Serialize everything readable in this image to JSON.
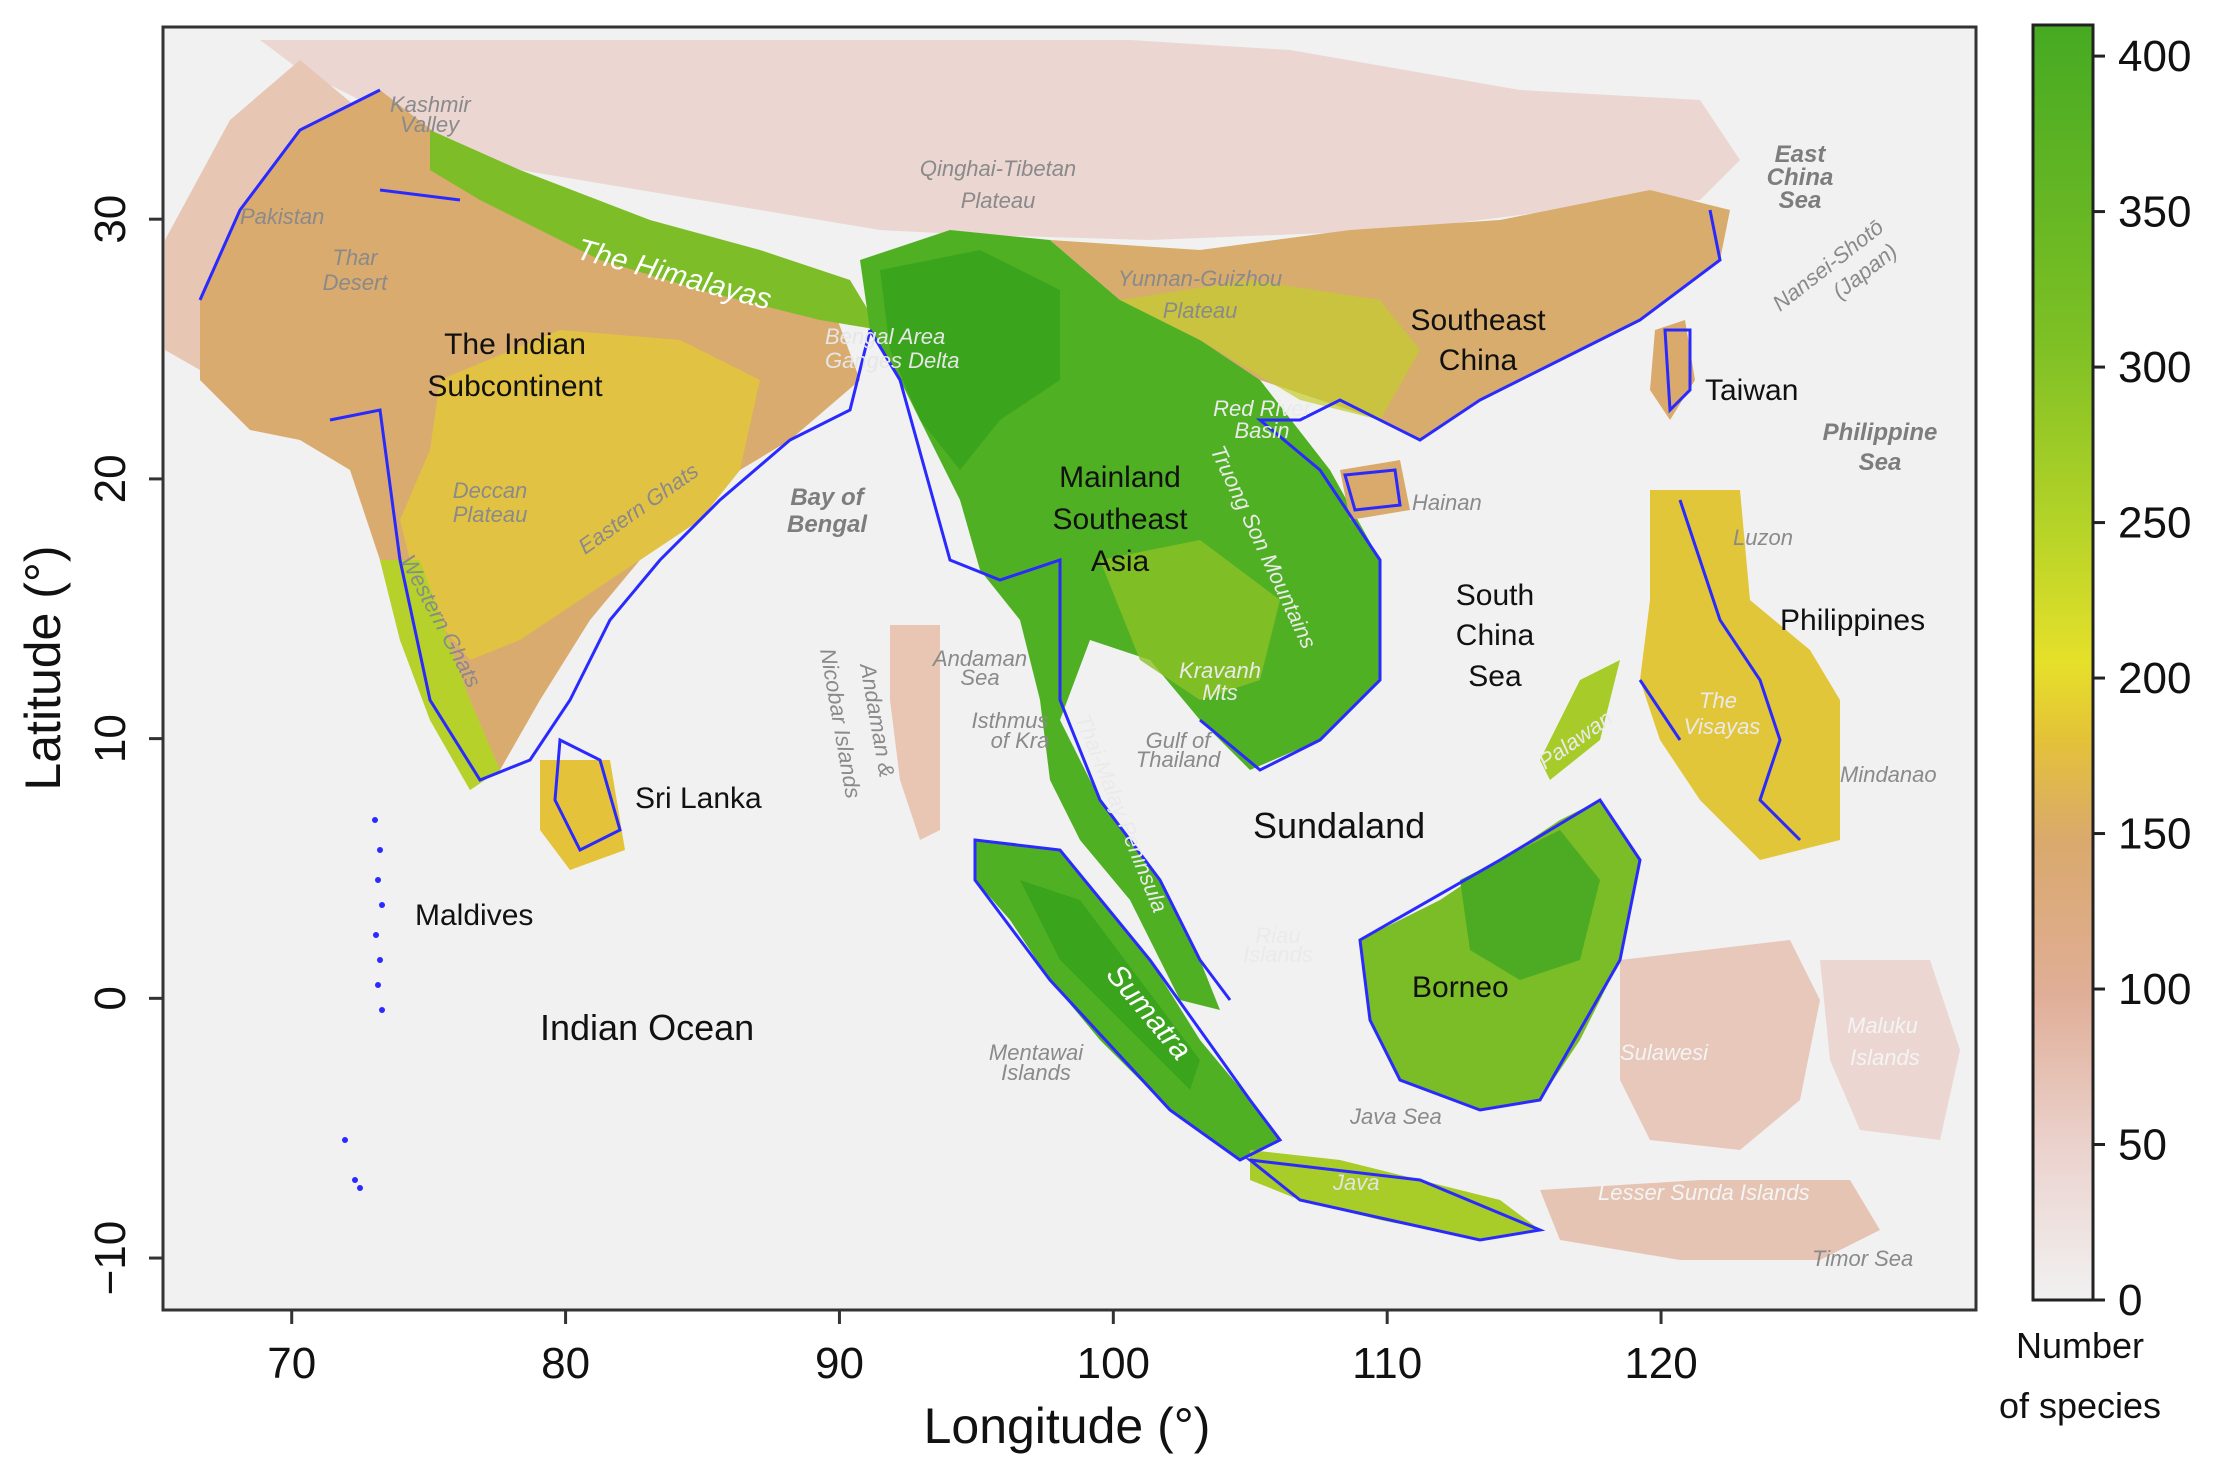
{
  "colors": {
    "background": "#f1f1f1",
    "land_low": "#ebd2cd",
    "land_mid": "#d9aa6c",
    "land_yellow": "#e6e02a",
    "land_green": "#50b024",
    "land_dark_green": "#3aa51c",
    "coastline": "#2a2aff",
    "border": "#b0b0b0"
  },
  "map": {
    "xaxis": {
      "title": "Longitude (°)",
      "ticks": [
        "70",
        "80",
        "90",
        "100",
        "110",
        "120"
      ],
      "tick_values": [
        70,
        80,
        90,
        100,
        110,
        120
      ],
      "range": [
        65.3,
        131.5
      ]
    },
    "yaxis": {
      "title": "Latitude (°)",
      "ticks": [
        "30",
        "20",
        "10",
        "0",
        "−10"
      ],
      "tick_values": [
        30,
        20,
        10,
        0,
        -10
      ],
      "range": [
        -12,
        37.4
      ]
    },
    "colorbar": {
      "title_line1": "Number",
      "title_line2": "of species",
      "ticks": [
        "400",
        "350",
        "300",
        "250",
        "200",
        "150",
        "100",
        "50",
        "0"
      ],
      "tick_values": [
        400,
        350,
        300,
        250,
        200,
        150,
        100,
        50,
        0
      ],
      "range": [
        0,
        410
      ],
      "stops": [
        "#f1f1f1",
        "#ebd2cd",
        "#e0ae97",
        "#d9a96d",
        "#e4c238",
        "#e6e02a",
        "#b8d428",
        "#7ec025",
        "#46aa22"
      ]
    },
    "region_labels": [
      {
        "line1": "The Indian",
        "line2": "Subcontinent"
      },
      {
        "line1": "Mainland",
        "line2": "Southeast",
        "line3": "Asia"
      },
      {
        "line1": "Southeast",
        "line2": "China"
      },
      {
        "text": "Taiwan"
      },
      {
        "text": "Hainan"
      },
      {
        "line1": "South",
        "line2": "China",
        "line3": "Sea"
      },
      {
        "text": "Philippines"
      },
      {
        "text": "Sri Lanka"
      },
      {
        "text": "Maldives"
      },
      {
        "text": "Indian Ocean"
      },
      {
        "text": "Sundaland"
      },
      {
        "text": "Borneo"
      }
    ],
    "geo_labels": {
      "pakistan": "Pakistan",
      "kashmir": "Kashmir",
      "valley": "Valley",
      "thar1": "Thar",
      "thar2": "Desert",
      "qinghai1": "Qinghai-Tibetan",
      "qinghai2": "Plateau",
      "himalayas": "The Himalayas",
      "yunnan1": "Yunnan-Guizhou",
      "yunnan2": "Plateau",
      "bengal1": "Bengal Area",
      "bengal2": "Ganges Delta",
      "eastern_ghats": "Eastern Ghats",
      "deccan1": "Deccan",
      "deccan2": "Plateau",
      "western_ghats": "Western Ghats",
      "bay1": "Bay of",
      "bay2": "Bengal",
      "redriver1": "Red River",
      "redriver2": "Basin",
      "truong": "Truong Son Mountains",
      "andaman_sea1": "Andaman",
      "andaman_sea2": "Sea",
      "andaman_is1": "Andaman &",
      "andaman_is2": "Nicobar Islands",
      "isthmus1": "Isthmus",
      "isthmus2": "of Kra",
      "thaimalay": "Thai-Malay Peninsula",
      "kravanh1": "Kravanh",
      "kravanh2": "Mts",
      "gulf1": "Gulf of",
      "gulf2": "Thailand",
      "east_china1": "East",
      "east_china2": "China",
      "east_china3": "Sea",
      "nansei1": "Nansei-Shotō",
      "nansei2": "(Japan)",
      "philsea1": "Philippine",
      "philsea2": "Sea",
      "luzon": "Luzon",
      "visayas1": "The",
      "visayas2": "Visayas",
      "mindanao": "Mindanao",
      "palawan": "Palawan",
      "riau1": "Riau",
      "riau2": "Islands",
      "sumatra": "Sumatra",
      "mentawai1": "Mentawai",
      "mentawai2": "Islands",
      "java_sea": "Java Sea",
      "java": "Java",
      "sulawesi": "Sulawesi",
      "maluku1": "Maluku",
      "maluku2": "Islands",
      "lesser_sunda": "Lesser Sunda Islands",
      "timor": "Timor Sea"
    }
  }
}
